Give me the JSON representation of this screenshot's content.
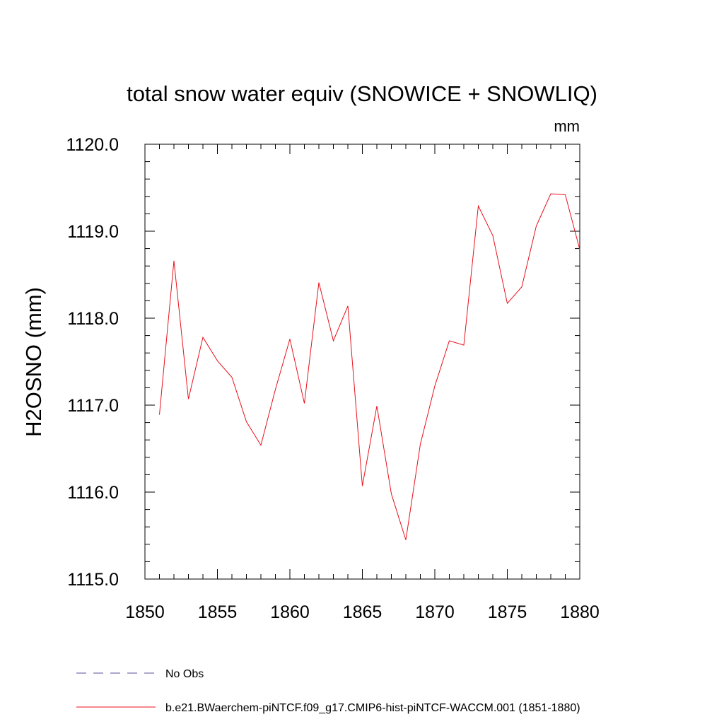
{
  "chart_data": {
    "type": "line",
    "title": "total snow water equiv (SNOWICE + SNOWLIQ)",
    "units": "mm",
    "ylabel": "H2OSNO  (mm)",
    "xlabel": "",
    "xlim": [
      1850,
      1880
    ],
    "ylim": [
      1115.0,
      1120.0
    ],
    "x_ticks": [
      1850,
      1855,
      1860,
      1865,
      1870,
      1875,
      1880
    ],
    "y_ticks": [
      1115.0,
      1116.0,
      1117.0,
      1118.0,
      1119.0,
      1120.0
    ],
    "x_tick_labels": [
      "1850",
      "1855",
      "1860",
      "1865",
      "1870",
      "1875",
      "1880"
    ],
    "y_tick_labels": [
      "1115.0",
      "1116.0",
      "1117.0",
      "1118.0",
      "1119.0",
      "1120.0"
    ],
    "x_minor_step": 1,
    "y_minor_step": 0.2,
    "grid": false,
    "legend_position": "bottom",
    "series": [
      {
        "name": "No Obs",
        "color": "#5a4f9e",
        "dash": "dashed",
        "x": [],
        "y": []
      },
      {
        "name": "b.e21.BWaerchem-piNTCF.f09_g17.CMIP6-hist-piNTCF-WACCM.001 (1851-1880)",
        "color": "#e8101a",
        "dash": "solid",
        "x": [
          1851,
          1852,
          1853,
          1854,
          1855,
          1856,
          1857,
          1858,
          1859,
          1860,
          1861,
          1862,
          1863,
          1864,
          1865,
          1866,
          1867,
          1868,
          1869,
          1870,
          1871,
          1872,
          1873,
          1874,
          1875,
          1876,
          1877,
          1878,
          1879,
          1880
        ],
        "y": [
          1116.89,
          1118.66,
          1117.07,
          1117.78,
          1117.51,
          1117.32,
          1116.81,
          1116.54,
          1117.18,
          1117.76,
          1117.02,
          1118.41,
          1117.74,
          1118.14,
          1116.07,
          1116.99,
          1115.98,
          1115.45,
          1116.55,
          1117.22,
          1117.74,
          1117.69,
          1119.29,
          1118.95,
          1118.17,
          1118.36,
          1119.06,
          1119.43,
          1119.42,
          1118.79
        ]
      }
    ]
  }
}
